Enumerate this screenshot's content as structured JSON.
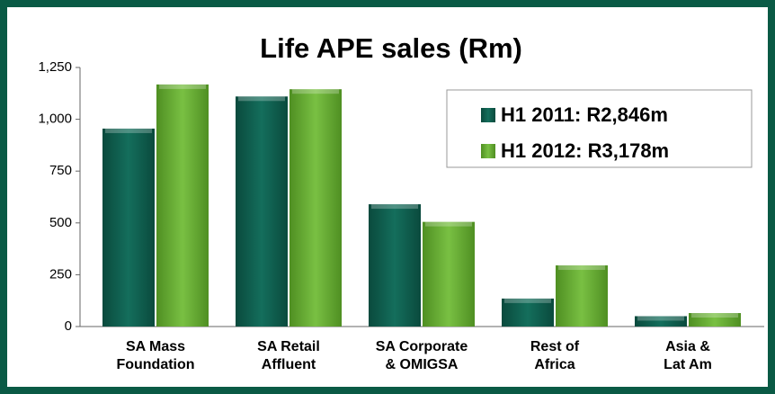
{
  "chart_data": {
    "type": "bar",
    "title": "Life APE sales (Rm)",
    "categories": [
      "SA Mass\nFoundation",
      "SA Retail\nAffluent",
      "SA Corporate\n& OMIGSA",
      "Rest of\nAfrica",
      "Asia &\nLat Am"
    ],
    "series": [
      {
        "name": "H1 2011: R2,846m",
        "color": "#0d6150",
        "values": [
          955,
          1110,
          590,
          135,
          50
        ]
      },
      {
        "name": "H1 2012: R3,178m",
        "color": "#6db33f",
        "values": [
          1168,
          1145,
          505,
          295,
          65
        ]
      }
    ],
    "ylim": [
      0,
      1250
    ],
    "yticks": [
      0,
      250,
      500,
      750,
      {
        "value": 1000,
        "label": "1,000"
      },
      {
        "value": 1250,
        "label": "1,250"
      }
    ],
    "legend": "upper right"
  }
}
